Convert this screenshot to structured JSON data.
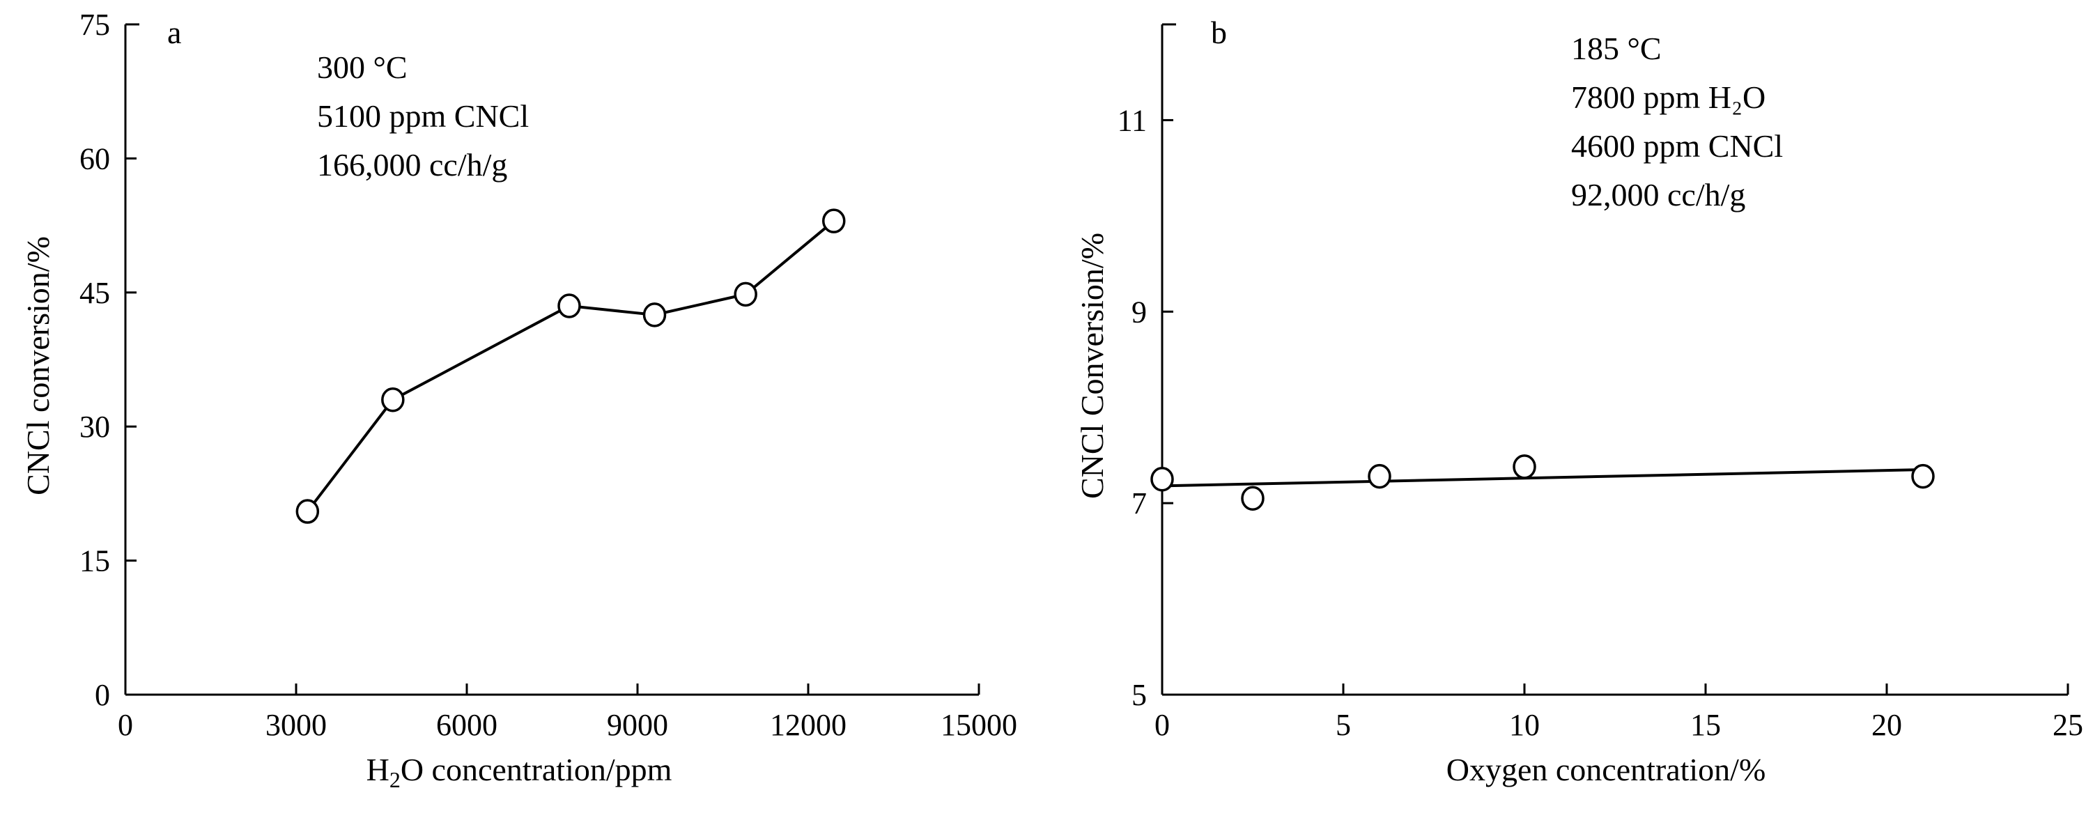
{
  "chart_data": [
    {
      "type": "line",
      "panel_label": "a",
      "title": "",
      "xlabel_parts": [
        "H",
        "2",
        "O concentration/ppm"
      ],
      "ylabel": "CNCl conversion/%",
      "xlim": [
        0,
        15000
      ],
      "ylim": [
        0,
        75
      ],
      "xticks": [
        0,
        3000,
        6000,
        9000,
        12000,
        15000
      ],
      "yticks": [
        0,
        15,
        30,
        45,
        60,
        75
      ],
      "annotations": [
        "300 °C",
        "5100 ppm CNCl",
        "166,000 cc/h/g"
      ],
      "series": [
        {
          "name": "CNCl conversion",
          "x": [
            3200,
            4700,
            7800,
            9300,
            10900,
            12450
          ],
          "y": [
            20.5,
            33,
            43.5,
            42.5,
            44.8,
            53
          ]
        }
      ]
    },
    {
      "type": "line",
      "panel_label": "b",
      "title": "",
      "xlabel": "Oxygen concentration/%",
      "ylabel": "CNCl Conversion/%",
      "xlim": [
        0,
        25
      ],
      "ylim": [
        5,
        12
      ],
      "xticks": [
        0,
        5,
        10,
        15,
        20,
        25
      ],
      "yticks": [
        5,
        7,
        9,
        11
      ],
      "annotations": [
        "185 °C",
        "7800 ppm H₂O",
        "4600 ppm CNCl",
        "92,000 cc/h/g"
      ],
      "series": [
        {
          "name": "CNCl conversion (points)",
          "x": [
            0,
            2.5,
            6,
            10,
            21
          ],
          "y": [
            7.25,
            7.05,
            7.28,
            7.38,
            7.28
          ]
        },
        {
          "name": "trend line",
          "x": [
            0,
            21
          ],
          "y": [
            7.18,
            7.35
          ]
        }
      ]
    }
  ]
}
